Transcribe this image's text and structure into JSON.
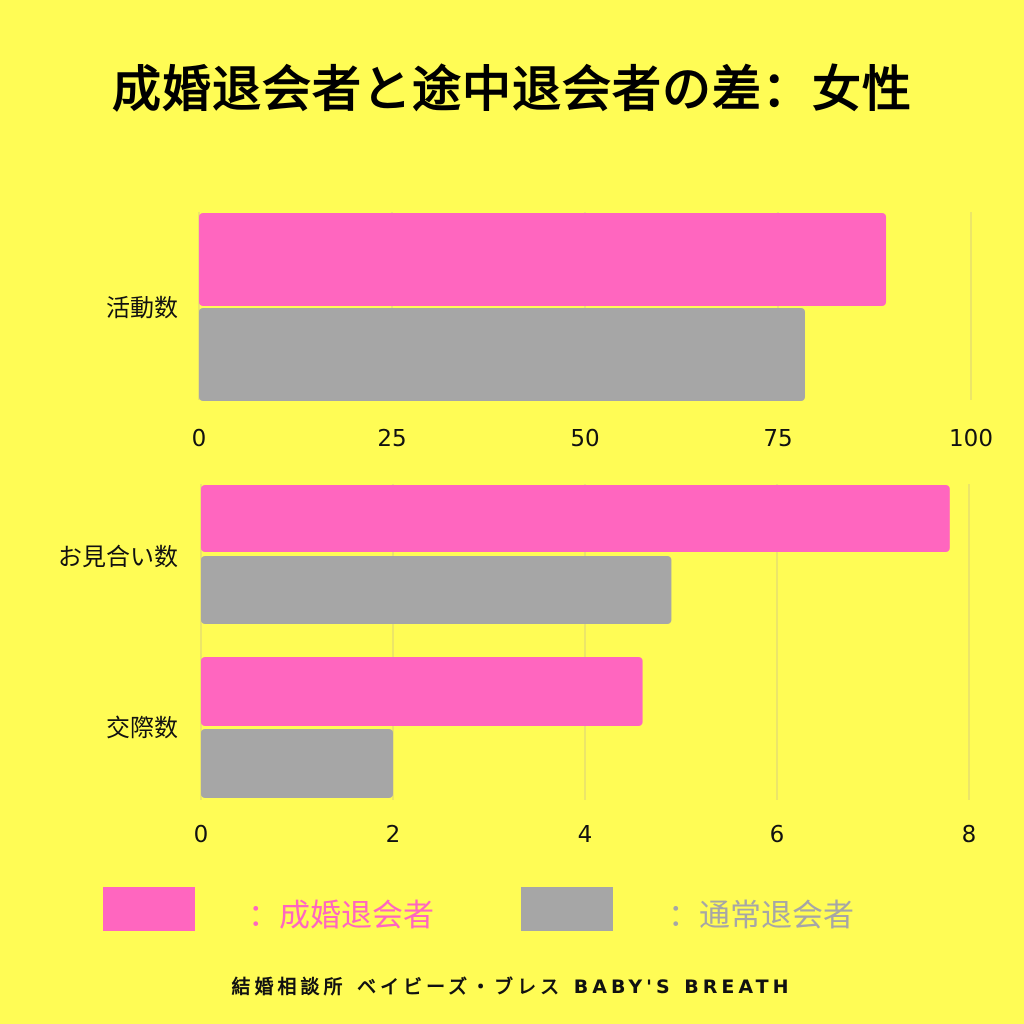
{
  "title": "成婚退会者と途中退会者の差：女性",
  "colors": {
    "background": "#FFFC55",
    "marriage": "#FF66BF",
    "normal": "#A6A6A6",
    "gridline": "#D8D07A"
  },
  "chart_data": [
    {
      "type": "bar",
      "orientation": "horizontal",
      "categories": [
        "活動数"
      ],
      "series": [
        {
          "name": "成婚退会者",
          "values": [
            89
          ]
        },
        {
          "name": "通常退会者",
          "values": [
            78.5
          ]
        }
      ],
      "xlim": [
        0,
        100
      ],
      "xticks": [
        "0",
        "25",
        "50",
        "75",
        "100"
      ],
      "grid": true
    },
    {
      "type": "bar",
      "orientation": "horizontal",
      "categories": [
        "お見合い数",
        "交際数"
      ],
      "series": [
        {
          "name": "成婚退会者",
          "values": [
            7.8,
            4.6
          ]
        },
        {
          "name": "通常退会者",
          "values": [
            4.9,
            2.0
          ]
        }
      ],
      "xlim": [
        0,
        8
      ],
      "xticks": [
        "0",
        "2",
        "4",
        "6",
        "8"
      ],
      "grid": true
    }
  ],
  "legend": {
    "marriage_label": "：成婚退会者",
    "normal_label": "：通常退会者"
  },
  "footer": "結婚相談所 ベイビーズ・ブレス BABY'S BREATH"
}
